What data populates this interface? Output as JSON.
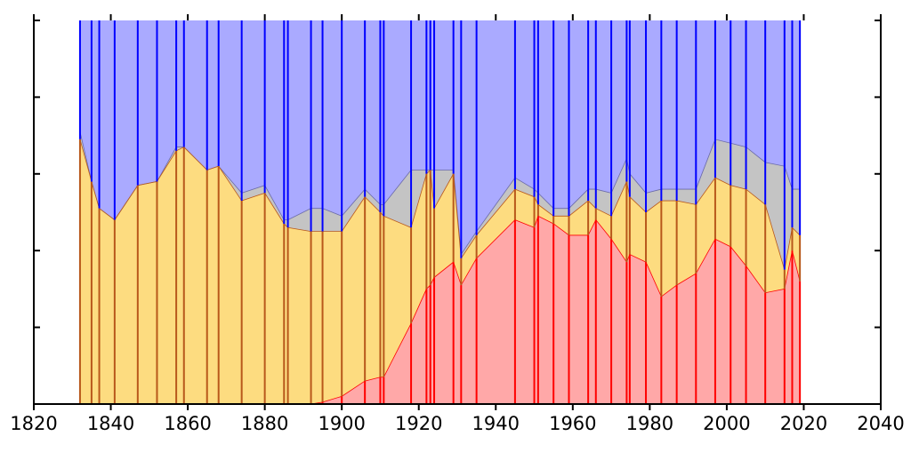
{
  "chart_data": {
    "type": "area",
    "title": "",
    "xlabel": "",
    "ylabel": "",
    "xlim": [
      1820,
      2040
    ],
    "ylim": [
      0,
      100
    ],
    "grid": false,
    "legend": "none",
    "x_ticks": [
      "1820",
      "1840",
      "1860",
      "1880",
      "1900",
      "1920",
      "1940",
      "1960",
      "1980",
      "2000",
      "2020",
      "2040"
    ],
    "colors": {
      "red_fill": "#ffa8a8",
      "red_line": "#ff0000",
      "yellow_fill": "#fddc80",
      "yellow_line": "#b8581b",
      "gray_fill": "#c4c4c4",
      "blue_fill": "#aaaaff",
      "blue_line": "#0000ff"
    },
    "elections": [
      1832,
      1835,
      1837,
      1841,
      1847,
      1852,
      1857,
      1859,
      1865,
      1868,
      1874,
      1880,
      1885,
      1886,
      1892,
      1895,
      1900,
      1906,
      1910,
      1910.9,
      1918,
      1922,
      1923,
      1924,
      1929,
      1931,
      1935,
      1945,
      1950,
      1951,
      1955,
      1959,
      1964,
      1966,
      1970,
      1974,
      1974.8,
      1979,
      1983,
      1987,
      1992,
      1997,
      2001,
      2005,
      2010,
      2015,
      2017,
      2019
    ],
    "series": [
      {
        "values": [
          0,
          0,
          0,
          0,
          0,
          0,
          0,
          0,
          0,
          0,
          0,
          0,
          0,
          0,
          0,
          0.5,
          2,
          6,
          7,
          7,
          21,
          30,
          31,
          33,
          37,
          31,
          38,
          48,
          46,
          49,
          47,
          44,
          44,
          48,
          43,
          37,
          39,
          37,
          28,
          31,
          34,
          43,
          41,
          36,
          29,
          30,
          40,
          32
        ]
      },
      {
        "values": [
          69,
          58,
          51,
          48,
          57,
          58,
          66,
          67,
          61,
          62,
          53,
          55,
          47,
          46,
          45,
          45,
          45,
          54,
          50,
          49,
          46,
          60,
          61,
          51,
          60,
          38,
          44,
          56,
          54,
          52,
          49,
          49,
          53,
          51,
          49,
          58,
          54,
          50,
          53,
          53,
          52,
          59,
          57,
          56,
          52,
          35,
          46,
          44
        ]
      },
      {
        "values": [
          71,
          58,
          51,
          48,
          57,
          58,
          67,
          67,
          61,
          62,
          55,
          57,
          48,
          48,
          51,
          51,
          49,
          56,
          52,
          52,
          61,
          61,
          61,
          61,
          61,
          39,
          45,
          59,
          56,
          55,
          51,
          51,
          56,
          56,
          55,
          64,
          60,
          55,
          56,
          56,
          56,
          69,
          68,
          67,
          63,
          62,
          56,
          56
        ]
      }
    ]
  }
}
